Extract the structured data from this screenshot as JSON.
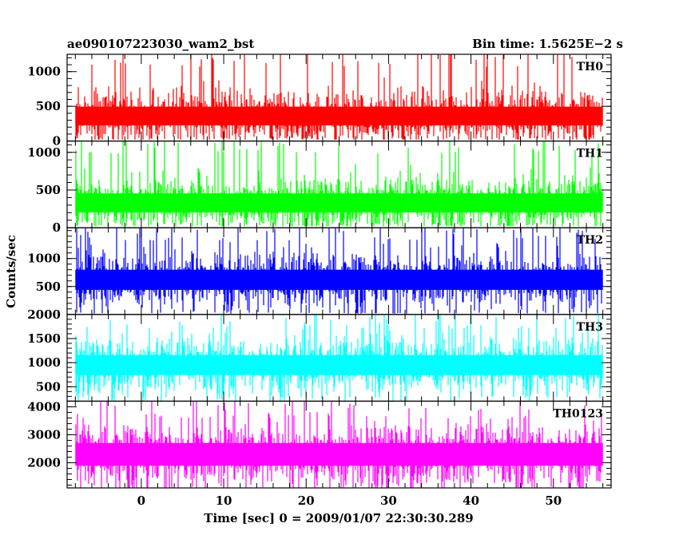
{
  "header": {
    "title": "ae090107223030_wam2_bst",
    "bin_time": "Bin time: 1.5625E−2 s"
  },
  "axes": {
    "xlabel": "Time [sec] 0 = 2009/01/07 22:30:30.289",
    "ylabel": "Counts/sec"
  },
  "chart_data": {
    "type": "line",
    "title": "ae090107223030_wam2_bst",
    "subtitle": "Bin time: 1.5625E−2 s",
    "xlabel": "Time [sec] 0 = 2009/01/07 22:30:30.289",
    "ylabel": "Counts/sec",
    "xlim": [
      -9,
      57
    ],
    "x_ticks": [
      0,
      10,
      20,
      30,
      40,
      50
    ],
    "x_range_data": [
      -8,
      56
    ],
    "bin_time_s": 0.015625,
    "grid": false,
    "panels": [
      {
        "name": "TH0",
        "color": "#ff0000",
        "ylim": [
          0,
          1250
        ],
        "y_ticks": [
          0,
          500,
          1000
        ],
        "mean": 360,
        "noise": 150,
        "floor": 40,
        "max_spike": 1260
      },
      {
        "name": "TH1",
        "color": "#00ff00",
        "ylim": [
          0,
          1150
        ],
        "y_ticks": [
          0,
          500,
          1000
        ],
        "mean": 330,
        "noise": 140,
        "floor": 40,
        "max_spike": 1150
      },
      {
        "name": "TH2",
        "color": "#0000ff",
        "ylim": [
          0,
          1550
        ],
        "y_ticks": [
          500,
          1000
        ],
        "mean": 620,
        "noise": 200,
        "floor": 30,
        "max_spike": 1550
      },
      {
        "name": "TH3",
        "color": "#00ffff",
        "ylim": [
          200,
          2000
        ],
        "y_ticks": [
          500,
          1000,
          1500,
          2000
        ],
        "mean": 950,
        "noise": 230,
        "floor": 250,
        "max_spike": 2000
      },
      {
        "name": "TH0123",
        "color": "#ff00ff",
        "ylim": [
          1100,
          4200
        ],
        "y_ticks": [
          2000,
          3000,
          4000
        ],
        "mean": 2300,
        "noise": 450,
        "floor": 1150,
        "max_spike": 4200
      }
    ]
  }
}
